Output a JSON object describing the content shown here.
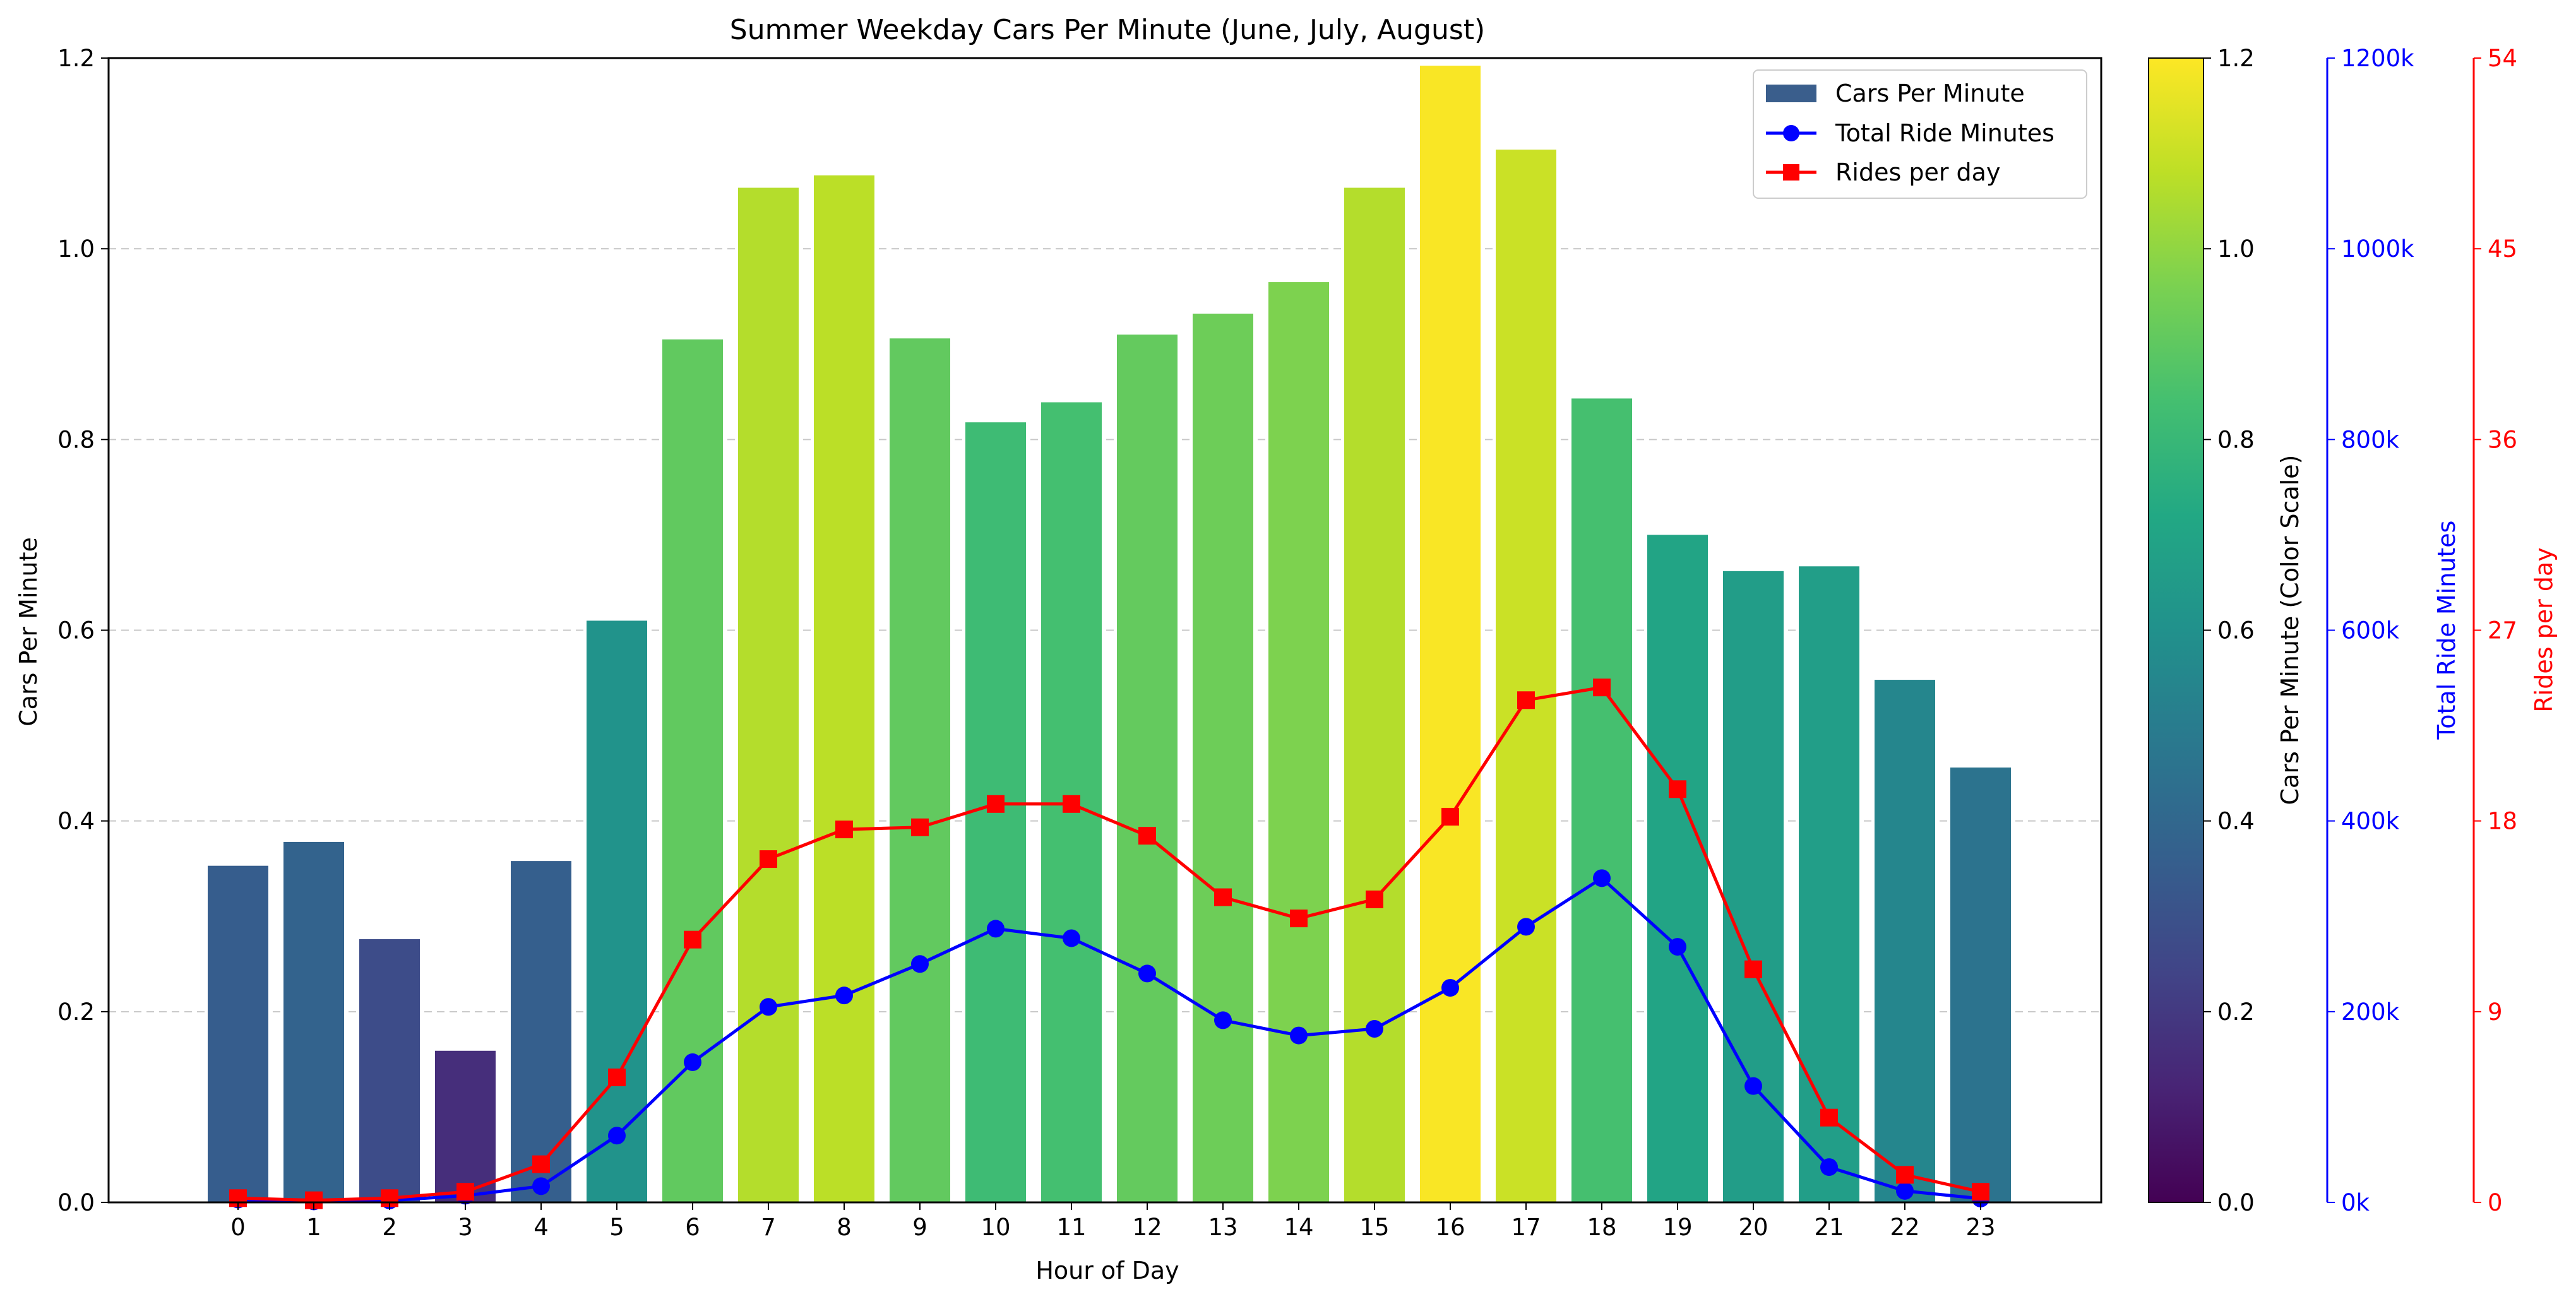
{
  "chart_data": {
    "type": "bar",
    "title": "Summer Weekday Cars Per Minute (June, July, August)",
    "xlabel": "Hour of Day",
    "ylabel": "Cars Per Minute",
    "ylim": [
      0,
      1.2
    ],
    "y_ticks": [
      "0.0",
      "0.2",
      "0.4",
      "0.6",
      "0.8",
      "1.0",
      "1.2"
    ],
    "grid": "horizontal dashed",
    "legend_position": "top-right",
    "categories": [
      "0",
      "1",
      "2",
      "3",
      "4",
      "5",
      "6",
      "7",
      "8",
      "9",
      "10",
      "11",
      "12",
      "13",
      "14",
      "15",
      "16",
      "17",
      "18",
      "19",
      "20",
      "21",
      "22",
      "23"
    ],
    "series": [
      {
        "name": "Cars Per Minute",
        "type": "bar",
        "axis": "left",
        "legend_color": "#3a5e8c",
        "values": [
          0.353,
          0.378,
          0.276,
          0.159,
          0.358,
          0.61,
          0.905,
          1.064,
          1.077,
          0.906,
          0.818,
          0.839,
          0.91,
          0.932,
          0.965,
          1.064,
          1.192,
          1.104,
          0.843,
          0.7,
          0.662,
          0.667,
          0.548,
          0.456
        ]
      },
      {
        "name": "Total Ride Minutes",
        "type": "line",
        "marker": "circle",
        "color": "#0000ff",
        "axis": "right-1",
        "values": [
          3000,
          1000,
          2000,
          7000,
          17000,
          70000,
          147000,
          205000,
          217000,
          250000,
          287000,
          277000,
          240000,
          191000,
          175000,
          182000,
          225000,
          289000,
          340000,
          268000,
          122000,
          37000,
          12000,
          4000
        ]
      },
      {
        "name": "Rides per day",
        "type": "line",
        "marker": "square",
        "color": "#ff0000",
        "axis": "right-2",
        "values": [
          0.2,
          0.1,
          0.2,
          0.5,
          1.8,
          5.9,
          12.4,
          16.2,
          17.6,
          17.7,
          18.8,
          18.8,
          17.3,
          14.4,
          13.4,
          14.3,
          18.2,
          23.7,
          24.3,
          19.5,
          11.0,
          4.0,
          1.3,
          0.5
        ]
      }
    ],
    "colorbar": {
      "label": "Cars Per Minute (Color Scale)",
      "colormap": "viridis",
      "range": [
        0,
        1.2
      ],
      "ticks": [
        "0.0",
        "0.2",
        "0.4",
        "0.6",
        "0.8",
        "1.0",
        "1.2"
      ]
    },
    "axis_right_1": {
      "label": "Total Ride Minutes",
      "color": "#0000ff",
      "range": [
        0,
        1200000
      ],
      "ticks": [
        "0k",
        "200k",
        "400k",
        "600k",
        "800k",
        "1000k",
        "1200k"
      ]
    },
    "axis_right_2": {
      "label": "Rides per day",
      "color": "#ff0000",
      "range": [
        0,
        54
      ],
      "ticks": [
        "0",
        "9",
        "18",
        "27",
        "36",
        "45",
        "54"
      ]
    }
  }
}
